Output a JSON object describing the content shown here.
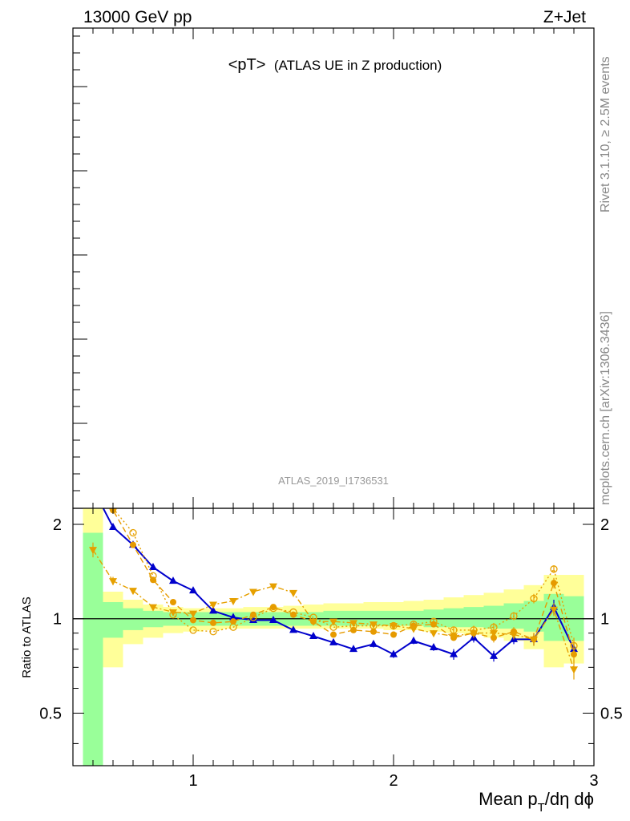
{
  "header": {
    "energy": "13000 GeV pp",
    "process": "Z+Jet"
  },
  "plot_title": {
    "main": "<pT>",
    "sub": "(ATLAS UE in Z production)"
  },
  "analysis_label": "ATLAS_2019_I1736531",
  "side_labels": {
    "rivet": "Rivet 3.1.10, ≥ 2.5M events",
    "source": "mcplots.cern.ch [arXiv:1306.3436]"
  },
  "chart_data": {
    "type": "line",
    "title": "<pT> (ATLAS UE in Z production)",
    "xlabel": "Mean p_T/dη dϕ",
    "ylabel": "Ratio to ATLAS",
    "xlim": [
      0.4,
      3.0
    ],
    "ylim": [
      0.34,
      2.25
    ],
    "x_ticks": [
      1,
      2,
      3
    ],
    "y_ticks": [
      0.5,
      1,
      2
    ],
    "reference_line": 1,
    "colors": {
      "green_band": "#99ff99",
      "yellow_band": "#ffff99",
      "blue": "#0000cc",
      "orange": "#e69a00",
      "amber": "#e6a000"
    },
    "bands": {
      "x_edges": [
        0.45,
        0.55,
        0.65,
        0.75,
        0.85,
        0.95,
        1.05,
        1.15,
        1.25,
        1.35,
        1.45,
        1.55,
        1.65,
        1.75,
        1.85,
        1.95,
        2.05,
        2.15,
        2.25,
        2.35,
        2.45,
        2.55,
        2.65,
        2.75,
        2.85,
        2.95
      ],
      "green_low": [
        0.34,
        0.87,
        0.92,
        0.94,
        0.95,
        0.95,
        0.95,
        0.95,
        0.95,
        0.95,
        0.95,
        0.95,
        0.95,
        0.95,
        0.95,
        0.95,
        0.95,
        0.94,
        0.94,
        0.94,
        0.93,
        0.93,
        0.91,
        0.85,
        0.85
      ],
      "green_high": [
        1.88,
        1.13,
        1.08,
        1.06,
        1.05,
        1.05,
        1.05,
        1.05,
        1.05,
        1.05,
        1.05,
        1.05,
        1.06,
        1.06,
        1.06,
        1.06,
        1.06,
        1.07,
        1.08,
        1.09,
        1.1,
        1.12,
        1.14,
        1.2,
        1.18
      ],
      "yellow_low": [
        0.34,
        0.7,
        0.83,
        0.87,
        0.9,
        0.91,
        0.92,
        0.93,
        0.93,
        0.93,
        0.93,
        0.93,
        0.93,
        0.93,
        0.93,
        0.92,
        0.92,
        0.91,
        0.9,
        0.89,
        0.87,
        0.85,
        0.8,
        0.7,
        0.72
      ],
      "yellow_high": [
        2.25,
        1.22,
        1.15,
        1.11,
        1.09,
        1.08,
        1.08,
        1.08,
        1.09,
        1.09,
        1.1,
        1.11,
        1.12,
        1.12,
        1.13,
        1.13,
        1.14,
        1.15,
        1.17,
        1.19,
        1.21,
        1.24,
        1.28,
        1.38,
        1.38
      ]
    },
    "series": [
      {
        "color": "#0000cc",
        "style": "solid",
        "marker": "triangle-up",
        "x": [
          0.5,
          0.6,
          0.7,
          0.8,
          0.9,
          1.0,
          1.1,
          1.2,
          1.3,
          1.4,
          1.5,
          1.6,
          1.7,
          1.8,
          1.9,
          2.0,
          2.1,
          2.2,
          2.3,
          2.4,
          2.5,
          2.6,
          2.7,
          2.8,
          2.9
        ],
        "y": [
          2.6,
          1.96,
          1.72,
          1.46,
          1.32,
          1.23,
          1.06,
          1.01,
          0.99,
          0.99,
          0.92,
          0.88,
          0.84,
          0.8,
          0.83,
          0.77,
          0.85,
          0.81,
          0.77,
          0.87,
          0.76,
          0.86,
          0.86,
          1.09,
          0.8
        ],
        "err": [
          0,
          0,
          0,
          0,
          0,
          0,
          0,
          0,
          0,
          0,
          0,
          0,
          0,
          0,
          0.02,
          0.02,
          0.02,
          0.02,
          0.03,
          0.03,
          0.03,
          0.03,
          0.04,
          0.06,
          0.04
        ]
      },
      {
        "color": "#e69a00",
        "style": "dashed",
        "marker": "circle-filled",
        "x": [
          0.5,
          0.6,
          0.7,
          0.8,
          0.9,
          1.0,
          1.1,
          1.2,
          1.3,
          1.4,
          1.5,
          1.6,
          1.7,
          1.8,
          1.9,
          2.0,
          2.1,
          2.2,
          2.3,
          2.4,
          2.5,
          2.6,
          2.7,
          2.8,
          2.9
        ],
        "y": [
          2.7,
          2.22,
          1.72,
          1.33,
          1.13,
          0.99,
          0.97,
          0.98,
          1.03,
          1.09,
          1.03,
          0.98,
          0.89,
          0.92,
          0.91,
          0.89,
          0.95,
          0.96,
          0.87,
          0.9,
          0.87,
          0.91,
          0.86,
          1.3,
          0.77
        ],
        "err": [
          0,
          0,
          0,
          0,
          0,
          0,
          0,
          0,
          0,
          0,
          0,
          0,
          0,
          0,
          0,
          0.02,
          0.02,
          0.02,
          0.02,
          0.03,
          0.03,
          0.03,
          0.04,
          0.05,
          0.05
        ]
      },
      {
        "color": "#e6a000",
        "style": "dotted",
        "marker": "circle-open",
        "x": [
          0.5,
          0.6,
          0.7,
          0.8,
          0.9,
          1.0,
          1.1,
          1.2,
          1.3,
          1.4,
          1.5,
          1.6,
          1.7,
          1.8,
          1.9,
          2.0,
          2.1,
          2.2,
          2.3,
          2.4,
          2.5,
          2.6,
          2.7,
          2.8,
          2.9
        ],
        "y": [
          2.7,
          2.25,
          1.88,
          1.37,
          1.03,
          0.92,
          0.91,
          0.94,
          1.01,
          1.08,
          1.05,
          1.01,
          0.94,
          0.95,
          0.95,
          0.95,
          0.96,
          0.98,
          0.92,
          0.92,
          0.94,
          1.02,
          1.16,
          1.44,
          0.82
        ],
        "err": [
          0,
          0,
          0,
          0,
          0,
          0,
          0,
          0,
          0,
          0,
          0,
          0,
          0,
          0,
          0,
          0,
          0.02,
          0.02,
          0.02,
          0.03,
          0.03,
          0.03,
          0.04,
          0.04,
          0.05
        ]
      },
      {
        "color": "#e6a000",
        "style": "dashdot",
        "marker": "triangle-down",
        "x": [
          0.5,
          0.6,
          0.7,
          0.8,
          0.9,
          1.0,
          1.1,
          1.2,
          1.3,
          1.4,
          1.5,
          1.6,
          1.7,
          1.8,
          1.9,
          2.0,
          2.1,
          2.2,
          2.3,
          2.4,
          2.5,
          2.6,
          2.7,
          2.8,
          2.9
        ],
        "y": [
          1.66,
          1.32,
          1.23,
          1.09,
          1.05,
          1.04,
          1.11,
          1.14,
          1.22,
          1.27,
          1.21,
          0.98,
          0.98,
          0.97,
          0.96,
          0.95,
          0.93,
          0.9,
          0.88,
          0.9,
          0.9,
          0.89,
          0.86,
          1.07,
          0.69
        ],
        "err": [
          0.09,
          0.04,
          0,
          0,
          0,
          0,
          0,
          0,
          0,
          0,
          0,
          0,
          0,
          0,
          0,
          0,
          0.02,
          0.02,
          0.02,
          0.03,
          0.03,
          0.03,
          0.04,
          0.05,
          0.05
        ]
      }
    ]
  }
}
